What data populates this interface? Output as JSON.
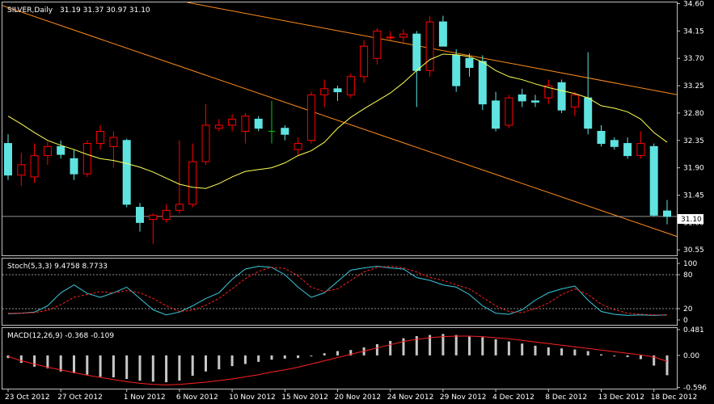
{
  "symbol_header": {
    "symbol": "SILVER,Daily",
    "ohlc": "31.19 31.37 30.97 31.10"
  },
  "current_price_label": "31.10",
  "colors": {
    "background": "#000000",
    "border": "#c0c0c0",
    "bull_body": "#000000",
    "bull_wick": "#ff0000",
    "bear_body": "#5fe3e0",
    "doji": "#00d000",
    "ma_line": "#ffff55",
    "channel": "#ff8c19",
    "stoch_main": "#3cc8dc",
    "stoch_signal": "#ff2020",
    "macd_hist": "#c8c8c8",
    "macd_signal": "#ff2020",
    "level_line": "#c0c0c0"
  },
  "chart_data": [
    {
      "type": "candlestick",
      "title": "SILVER,Daily",
      "ylim": [
        30.46,
        34.62
      ],
      "y_ticks": [
        "34.60",
        "34.15",
        "33.70",
        "33.25",
        "32.80",
        "32.35",
        "31.90",
        "31.45",
        "31.00",
        "30.55"
      ],
      "x_tick_labels": [
        "23 Oct 2012",
        "27 Oct 2012",
        "1 Nov 2012",
        "6 Nov 2012",
        "10 Nov 2012",
        "15 Nov 2012",
        "20 Nov 2012",
        "24 Nov 2012",
        "29 Nov 2012",
        "4 Dec 2012",
        "8 Dec 2012",
        "13 Dec 2012",
        "18 Dec 2012"
      ],
      "x_tick_index": [
        0,
        4,
        9,
        13,
        17,
        21,
        25,
        29,
        33,
        37,
        41,
        45,
        49
      ],
      "candles": [
        {
          "o": 32.3,
          "h": 32.45,
          "l": 31.7,
          "c": 31.78
        },
        {
          "o": 31.78,
          "h": 32.15,
          "l": 31.6,
          "c": 31.95
        },
        {
          "o": 31.75,
          "h": 32.3,
          "l": 31.65,
          "c": 32.1
        },
        {
          "o": 32.1,
          "h": 32.33,
          "l": 31.95,
          "c": 32.25
        },
        {
          "o": 32.25,
          "h": 32.35,
          "l": 32.05,
          "c": 32.12
        },
        {
          "o": 32.05,
          "h": 32.2,
          "l": 31.7,
          "c": 31.8
        },
        {
          "o": 31.8,
          "h": 32.35,
          "l": 31.75,
          "c": 32.3
        },
        {
          "o": 32.3,
          "h": 32.6,
          "l": 32.2,
          "c": 32.5
        },
        {
          "o": 32.25,
          "h": 32.5,
          "l": 31.9,
          "c": 32.4
        },
        {
          "o": 32.35,
          "h": 32.38,
          "l": 31.25,
          "c": 31.3
        },
        {
          "o": 31.25,
          "h": 31.32,
          "l": 30.85,
          "c": 31.0
        },
        {
          "o": 31.05,
          "h": 31.15,
          "l": 30.65,
          "c": 31.12
        },
        {
          "o": 31.05,
          "h": 31.3,
          "l": 31.0,
          "c": 31.2
        },
        {
          "o": 31.2,
          "h": 32.35,
          "l": 31.15,
          "c": 31.3
        },
        {
          "o": 31.3,
          "h": 32.3,
          "l": 31.25,
          "c": 32.0
        },
        {
          "o": 32.0,
          "h": 32.95,
          "l": 31.95,
          "c": 32.6
        },
        {
          "o": 32.55,
          "h": 32.7,
          "l": 32.5,
          "c": 32.6
        },
        {
          "o": 32.6,
          "h": 32.78,
          "l": 32.5,
          "c": 32.7
        },
        {
          "o": 32.5,
          "h": 32.8,
          "l": 32.3,
          "c": 32.75
        },
        {
          "o": 32.7,
          "h": 32.75,
          "l": 32.5,
          "c": 32.55
        },
        {
          "o": 32.5,
          "h": 33.0,
          "l": 32.3,
          "c": 32.5,
          "doji": true
        },
        {
          "o": 32.55,
          "h": 32.6,
          "l": 32.35,
          "c": 32.45
        },
        {
          "o": 32.2,
          "h": 32.4,
          "l": 32.1,
          "c": 32.3
        },
        {
          "o": 32.35,
          "h": 33.15,
          "l": 32.3,
          "c": 33.1
        },
        {
          "o": 33.1,
          "h": 33.35,
          "l": 32.9,
          "c": 33.2
        },
        {
          "o": 33.2,
          "h": 33.25,
          "l": 33.0,
          "c": 33.15
        },
        {
          "o": 33.1,
          "h": 33.45,
          "l": 33.05,
          "c": 33.4
        },
        {
          "o": 33.4,
          "h": 34.0,
          "l": 33.3,
          "c": 33.9
        },
        {
          "o": 33.7,
          "h": 34.2,
          "l": 33.6,
          "c": 34.15
        },
        {
          "o": 34.05,
          "h": 34.15,
          "l": 34.0,
          "c": 34.05
        },
        {
          "o": 34.05,
          "h": 34.18,
          "l": 33.95,
          "c": 34.1
        },
        {
          "o": 34.1,
          "h": 34.15,
          "l": 32.9,
          "c": 33.5
        },
        {
          "o": 33.5,
          "h": 34.4,
          "l": 33.4,
          "c": 34.3
        },
        {
          "o": 34.3,
          "h": 34.4,
          "l": 33.9,
          "c": 33.9
        },
        {
          "o": 33.75,
          "h": 33.85,
          "l": 33.15,
          "c": 33.25
        },
        {
          "o": 33.7,
          "h": 33.78,
          "l": 33.4,
          "c": 33.55
        },
        {
          "o": 33.65,
          "h": 33.75,
          "l": 32.85,
          "c": 32.95
        },
        {
          "o": 33.0,
          "h": 33.15,
          "l": 32.5,
          "c": 32.55
        },
        {
          "o": 32.6,
          "h": 33.1,
          "l": 32.55,
          "c": 33.05
        },
        {
          "o": 33.1,
          "h": 33.2,
          "l": 32.9,
          "c": 33.0
        },
        {
          "o": 33.0,
          "h": 33.1,
          "l": 32.9,
          "c": 32.98
        },
        {
          "o": 33.05,
          "h": 33.35,
          "l": 32.95,
          "c": 33.25
        },
        {
          "o": 33.3,
          "h": 33.35,
          "l": 32.8,
          "c": 32.85
        },
        {
          "o": 32.9,
          "h": 33.15,
          "l": 32.75,
          "c": 33.1
        },
        {
          "o": 33.05,
          "h": 33.8,
          "l": 32.45,
          "c": 32.55
        },
        {
          "o": 32.5,
          "h": 32.6,
          "l": 32.25,
          "c": 32.3
        },
        {
          "o": 32.35,
          "h": 32.4,
          "l": 32.2,
          "c": 32.25
        },
        {
          "o": 32.3,
          "h": 32.4,
          "l": 32.05,
          "c": 32.1
        },
        {
          "o": 32.1,
          "h": 32.5,
          "l": 32.05,
          "c": 32.3
        },
        {
          "o": 32.25,
          "h": 32.3,
          "l": 31.1,
          "c": 31.12
        },
        {
          "o": 31.19,
          "h": 31.37,
          "l": 30.97,
          "c": 31.1
        }
      ],
      "moving_average": [
        32.75,
        32.62,
        32.48,
        32.35,
        32.27,
        32.2,
        32.12,
        32.05,
        32.02,
        31.97,
        31.91,
        31.83,
        31.73,
        31.63,
        31.58,
        31.56,
        31.64,
        31.75,
        31.84,
        31.87,
        31.9,
        31.98,
        32.1,
        32.18,
        32.32,
        32.55,
        32.73,
        32.87,
        33.0,
        33.13,
        33.3,
        33.5,
        33.68,
        33.77,
        33.76,
        33.73,
        33.64,
        33.5,
        33.4,
        33.35,
        33.28,
        33.22,
        33.17,
        33.12,
        33.05,
        32.92,
        32.88,
        32.82,
        32.7,
        32.48,
        32.32
      ],
      "channel_upper": {
        "from": {
          "i": 13.6,
          "v": 34.62
        },
        "to": {
          "i": 51.3,
          "v": 33.08
        }
      },
      "channel_lower": {
        "from": {
          "i": -0.45,
          "v": 34.57
        },
        "to": {
          "i": 51.3,
          "v": 30.73
        }
      }
    },
    {
      "type": "line",
      "title": "Stoch(5,3,3) 9.4758 8.7733",
      "ylim": [
        0,
        100
      ],
      "y_ticks": [
        "100",
        "80",
        "20",
        "0"
      ],
      "levels": [
        80,
        20
      ],
      "series": [
        {
          "name": "main",
          "values": [
            11,
            12,
            14,
            25,
            48,
            62,
            47,
            40,
            48,
            58,
            38,
            18,
            9,
            14,
            25,
            38,
            48,
            72,
            90,
            95,
            93,
            80,
            58,
            40,
            48,
            68,
            88,
            92,
            95,
            92,
            90,
            75,
            70,
            62,
            58,
            45,
            25,
            12,
            10,
            18,
            35,
            48,
            55,
            60,
            35,
            15,
            10,
            8,
            9,
            8,
            9
          ]
        },
        {
          "name": "signal",
          "values": [
            12,
            12,
            13,
            17,
            27,
            40,
            45,
            50,
            48,
            52,
            48,
            38,
            25,
            15,
            17,
            26,
            38,
            55,
            73,
            86,
            93,
            91,
            78,
            58,
            50,
            55,
            70,
            85,
            93,
            95,
            92,
            85,
            75,
            70,
            62,
            55,
            40,
            25,
            15,
            13,
            20,
            30,
            45,
            55,
            45,
            28,
            18,
            12,
            10,
            9,
            9
          ]
        }
      ]
    },
    {
      "type": "bar",
      "title": "MACD(12,26,9) -0.368 -0.109",
      "ylim": [
        -0.62,
        0.51
      ],
      "y_ticks": [
        "0.481",
        "0.00",
        "-0.596"
      ],
      "series": [
        {
          "name": "histogram",
          "values": [
            -0.05,
            -0.14,
            -0.21,
            -0.24,
            -0.3,
            -0.33,
            -0.36,
            -0.4,
            -0.41,
            -0.44,
            -0.47,
            -0.49,
            -0.5,
            -0.47,
            -0.38,
            -0.3,
            -0.26,
            -0.2,
            -0.16,
            -0.12,
            -0.08,
            -0.06,
            -0.05,
            -0.01,
            0.04,
            0.08,
            0.1,
            0.15,
            0.21,
            0.27,
            0.32,
            0.36,
            0.38,
            0.4,
            0.38,
            0.35,
            0.34,
            0.3,
            0.26,
            0.22,
            0.18,
            0.15,
            0.13,
            0.11,
            0.08,
            0.02,
            -0.01,
            -0.03,
            -0.07,
            -0.19,
            -0.37
          ]
        },
        {
          "name": "signal",
          "values": [
            -0.02,
            -0.1,
            -0.16,
            -0.22,
            -0.27,
            -0.32,
            -0.37,
            -0.41,
            -0.45,
            -0.49,
            -0.52,
            -0.54,
            -0.55,
            -0.54,
            -0.52,
            -0.5,
            -0.47,
            -0.44,
            -0.4,
            -0.36,
            -0.31,
            -0.27,
            -0.22,
            -0.16,
            -0.1,
            -0.04,
            0.02,
            0.08,
            0.14,
            0.2,
            0.26,
            0.3,
            0.33,
            0.35,
            0.36,
            0.36,
            0.35,
            0.33,
            0.31,
            0.28,
            0.25,
            0.22,
            0.19,
            0.16,
            0.13,
            0.1,
            0.07,
            0.04,
            0.01,
            -0.03,
            -0.11
          ]
        }
      ]
    }
  ]
}
